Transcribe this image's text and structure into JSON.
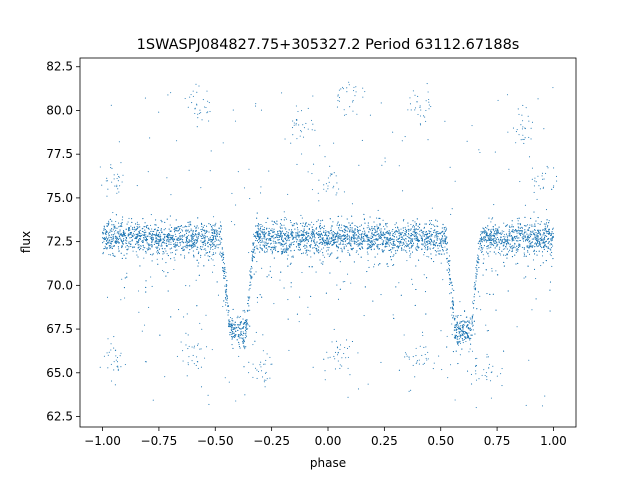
{
  "chart_data": {
    "type": "scatter",
    "title": "1SWASPJ084827.75+305327.2 Period 63112.67188s",
    "xlabel": "phase",
    "ylabel": "flux",
    "xlim": [
      -1.1,
      1.1
    ],
    "ylim": [
      61.9,
      83.0
    ],
    "x_ticks": [
      -1.0,
      -0.75,
      -0.5,
      -0.25,
      0.0,
      0.25,
      0.5,
      0.75,
      1.0
    ],
    "x_tick_labels": [
      "−1.00",
      "−0.75",
      "−0.50",
      "−0.25",
      "0.00",
      "0.25",
      "0.50",
      "0.75",
      "1.00"
    ],
    "y_ticks": [
      62.5,
      65.0,
      67.5,
      70.0,
      72.5,
      75.0,
      77.5,
      80.0,
      82.5
    ],
    "y_tick_labels": [
      "62.5",
      "65.0",
      "67.5",
      "70.0",
      "72.5",
      "75.0",
      "77.5",
      "80.0",
      "82.5"
    ],
    "grid": false,
    "point_color": "#1f77b4",
    "phase_range": [
      -1.0,
      1.0
    ],
    "baseline_flux": 72.7,
    "baseline_scatter": 0.45,
    "eclipse_centers": [
      -0.4,
      0.6
    ],
    "eclipse_depth_flux": 67.4,
    "eclipse_half_width": 0.075,
    "eclipse_bottom_half_width": 0.035,
    "outlier_clusters": [
      {
        "x": -0.95,
        "y": 65.8
      },
      {
        "x": -0.6,
        "y": 66.0
      },
      {
        "x": -0.3,
        "y": 65.2
      },
      {
        "x": 0.05,
        "y": 65.8
      },
      {
        "x": 0.4,
        "y": 66.0
      },
      {
        "x": 0.7,
        "y": 65.2
      },
      {
        "x": -0.58,
        "y": 80.3
      },
      {
        "x": 0.42,
        "y": 80.3
      },
      {
        "x": -0.12,
        "y": 79.2
      },
      {
        "x": 0.88,
        "y": 79.1
      },
      {
        "x": -0.95,
        "y": 76.0
      },
      {
        "x": 0.95,
        "y": 76.0
      },
      {
        "x": 0.0,
        "y": 76.0
      },
      {
        "x": 0.08,
        "y": 80.8
      }
    ]
  }
}
